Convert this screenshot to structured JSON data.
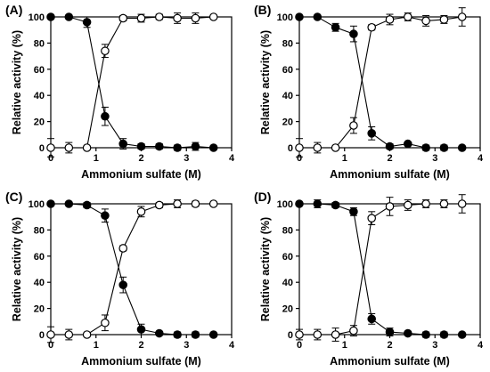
{
  "figure": {
    "style": {
      "line_color": "#000000",
      "filled_marker": "#000000",
      "open_marker_fill": "#ffffff"
    },
    "x_axis_label": "Ammonium sulfate (M)",
    "y_axis_label": "Relative activity (%)"
  },
  "chart_data": [
    {
      "type": "line",
      "panel_label": "(A)",
      "xlabel": "Ammonium sulfate (M)",
      "ylabel": "Relative activity (%)",
      "xlim": [
        0,
        4
      ],
      "ylim": [
        0,
        100
      ],
      "xticks": [
        "0",
        "1",
        "2",
        "3",
        "4"
      ],
      "yticks": [
        "0",
        "20",
        "40",
        "60",
        "80",
        "100"
      ],
      "grid": false,
      "series": [
        {
          "marker": "filled-circle",
          "x": [
            0,
            0.4,
            0.8,
            1.2,
            1.6,
            2.0,
            2.4,
            2.8,
            3.2,
            3.6
          ],
          "y": [
            100,
            100,
            96,
            24,
            3,
            1,
            1,
            0,
            1,
            0
          ],
          "error": [
            1,
            1,
            4,
            7,
            4,
            2,
            2,
            2,
            3,
            1
          ]
        },
        {
          "marker": "open-circle",
          "x": [
            0,
            0.4,
            0.8,
            1.2,
            1.6,
            2.0,
            2.4,
            2.8,
            3.2,
            3.6
          ],
          "y": [
            0,
            0,
            0,
            74,
            99,
            99,
            100,
            99,
            99,
            100
          ],
          "error": [
            7,
            4,
            0,
            5,
            2,
            3,
            2,
            4,
            4,
            1
          ]
        }
      ]
    },
    {
      "type": "line",
      "panel_label": "(B)",
      "xlabel": "Ammonium sulfate (M)",
      "ylabel": "Relative activity (%)",
      "xlim": [
        0,
        4
      ],
      "ylim": [
        0,
        100
      ],
      "xticks": [
        "0",
        "1",
        "2",
        "3",
        "4"
      ],
      "yticks": [
        "0",
        "20",
        "40",
        "60",
        "80",
        "100"
      ],
      "grid": false,
      "series": [
        {
          "marker": "filled-circle",
          "x": [
            0,
            0.4,
            0.8,
            1.2,
            1.6,
            2.0,
            2.4,
            2.8,
            3.2,
            3.6
          ],
          "y": [
            100,
            100,
            92,
            87,
            11,
            1,
            3,
            0,
            0,
            0
          ],
          "error": [
            1,
            1,
            3,
            6,
            5,
            2,
            1,
            2,
            2,
            1
          ]
        },
        {
          "marker": "open-circle",
          "x": [
            0,
            0.4,
            0.8,
            1.2,
            1.6,
            2.0,
            2.4,
            2.8,
            3.2,
            3.6
          ],
          "y": [
            0,
            0,
            0,
            17,
            92,
            98,
            100,
            97,
            98,
            100
          ],
          "error": [
            7,
            4,
            0,
            6,
            2,
            4,
            3,
            4,
            3,
            7
          ]
        }
      ]
    },
    {
      "type": "line",
      "panel_label": "(C)",
      "xlabel": "Ammonium sulfate (M)",
      "ylabel": "Relative activity (%)",
      "xlim": [
        0,
        4
      ],
      "ylim": [
        0,
        100
      ],
      "xticks": [
        "0",
        "1",
        "2",
        "3",
        "4"
      ],
      "yticks": [
        "0",
        "20",
        "40",
        "60",
        "80",
        "100"
      ],
      "grid": false,
      "series": [
        {
          "marker": "filled-circle",
          "x": [
            0,
            0.4,
            0.8,
            1.2,
            1.6,
            2.0,
            2.4,
            2.8,
            3.2,
            3.6
          ],
          "y": [
            100,
            100,
            99,
            91,
            38,
            4,
            1,
            0,
            0,
            0
          ],
          "error": [
            1,
            1,
            2,
            5,
            6,
            4,
            1,
            2,
            2,
            1
          ]
        },
        {
          "marker": "open-circle",
          "x": [
            0,
            0.4,
            0.8,
            1.2,
            1.6,
            2.0,
            2.4,
            2.8,
            3.2,
            3.6
          ],
          "y": [
            0,
            0,
            0,
            9,
            66,
            94,
            99,
            100,
            100,
            100
          ],
          "error": [
            6,
            4,
            0,
            6,
            2,
            4,
            2,
            3,
            2,
            1
          ]
        }
      ]
    },
    {
      "type": "line",
      "panel_label": "(D)",
      "xlabel": "Ammonium sulfate (M)",
      "ylabel": "Relative activity (%)",
      "xlim": [
        0,
        4
      ],
      "ylim": [
        0,
        100
      ],
      "xticks": [
        "0",
        "1",
        "2",
        "3",
        "4"
      ],
      "yticks": [
        "0",
        "20",
        "40",
        "60",
        "80",
        "100"
      ],
      "grid": false,
      "series": [
        {
          "marker": "filled-circle",
          "x": [
            0,
            0.4,
            0.8,
            1.2,
            1.6,
            2.0,
            2.4,
            2.8,
            3.2,
            3.6
          ],
          "y": [
            100,
            100,
            99,
            94,
            12,
            2,
            1,
            0,
            0,
            0
          ],
          "error": [
            1,
            3,
            2,
            3,
            4,
            3,
            1,
            2,
            2,
            1
          ]
        },
        {
          "marker": "open-circle",
          "x": [
            0,
            0.4,
            0.8,
            1.2,
            1.6,
            2.0,
            2.4,
            2.8,
            3.2,
            3.6
          ],
          "y": [
            0,
            0,
            0,
            3,
            89,
            98,
            99,
            100,
            100,
            100
          ],
          "error": [
            4,
            4,
            5,
            4,
            5,
            7,
            4,
            3,
            3,
            7
          ]
        }
      ]
    }
  ]
}
